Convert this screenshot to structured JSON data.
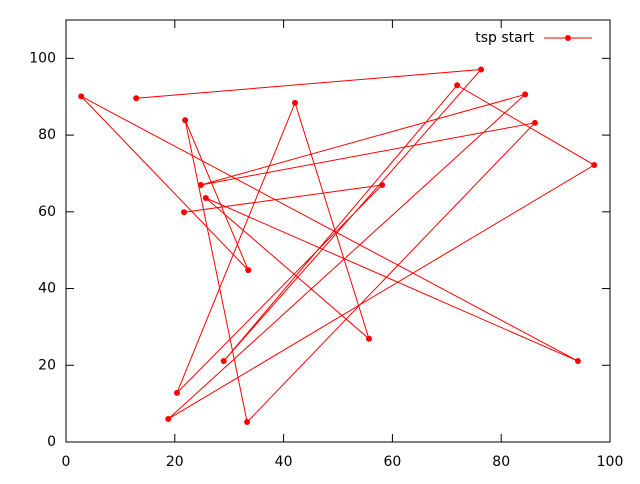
{
  "chart_data": {
    "type": "line",
    "x": [
      12.9,
      76.3,
      29.0,
      71.9,
      97.1,
      18.8,
      84.4,
      24.8,
      86.2,
      33.3,
      21.9,
      33.5,
      2.8,
      94.1,
      25.7,
      55.7,
      42.1,
      20.4,
      58.1,
      21.7
    ],
    "series": [
      {
        "name": "tsp start",
        "color": "#ff0000",
        "values": [
          89.6,
          97.1,
          21.1,
          93.0,
          72.2,
          6.0,
          90.6,
          67.0,
          83.2,
          5.2,
          83.9,
          44.8,
          90.1,
          21.1,
          63.6,
          26.9,
          88.4,
          12.8,
          67.0,
          59.9
        ]
      }
    ],
    "xlim": [
      0,
      100
    ],
    "xticks": [
      0,
      20,
      40,
      60,
      80,
      100
    ],
    "ylim": [
      0,
      110
    ],
    "yticks": [
      0,
      20,
      40,
      60,
      80,
      100
    ],
    "grid": false,
    "legend": "top-right"
  }
}
